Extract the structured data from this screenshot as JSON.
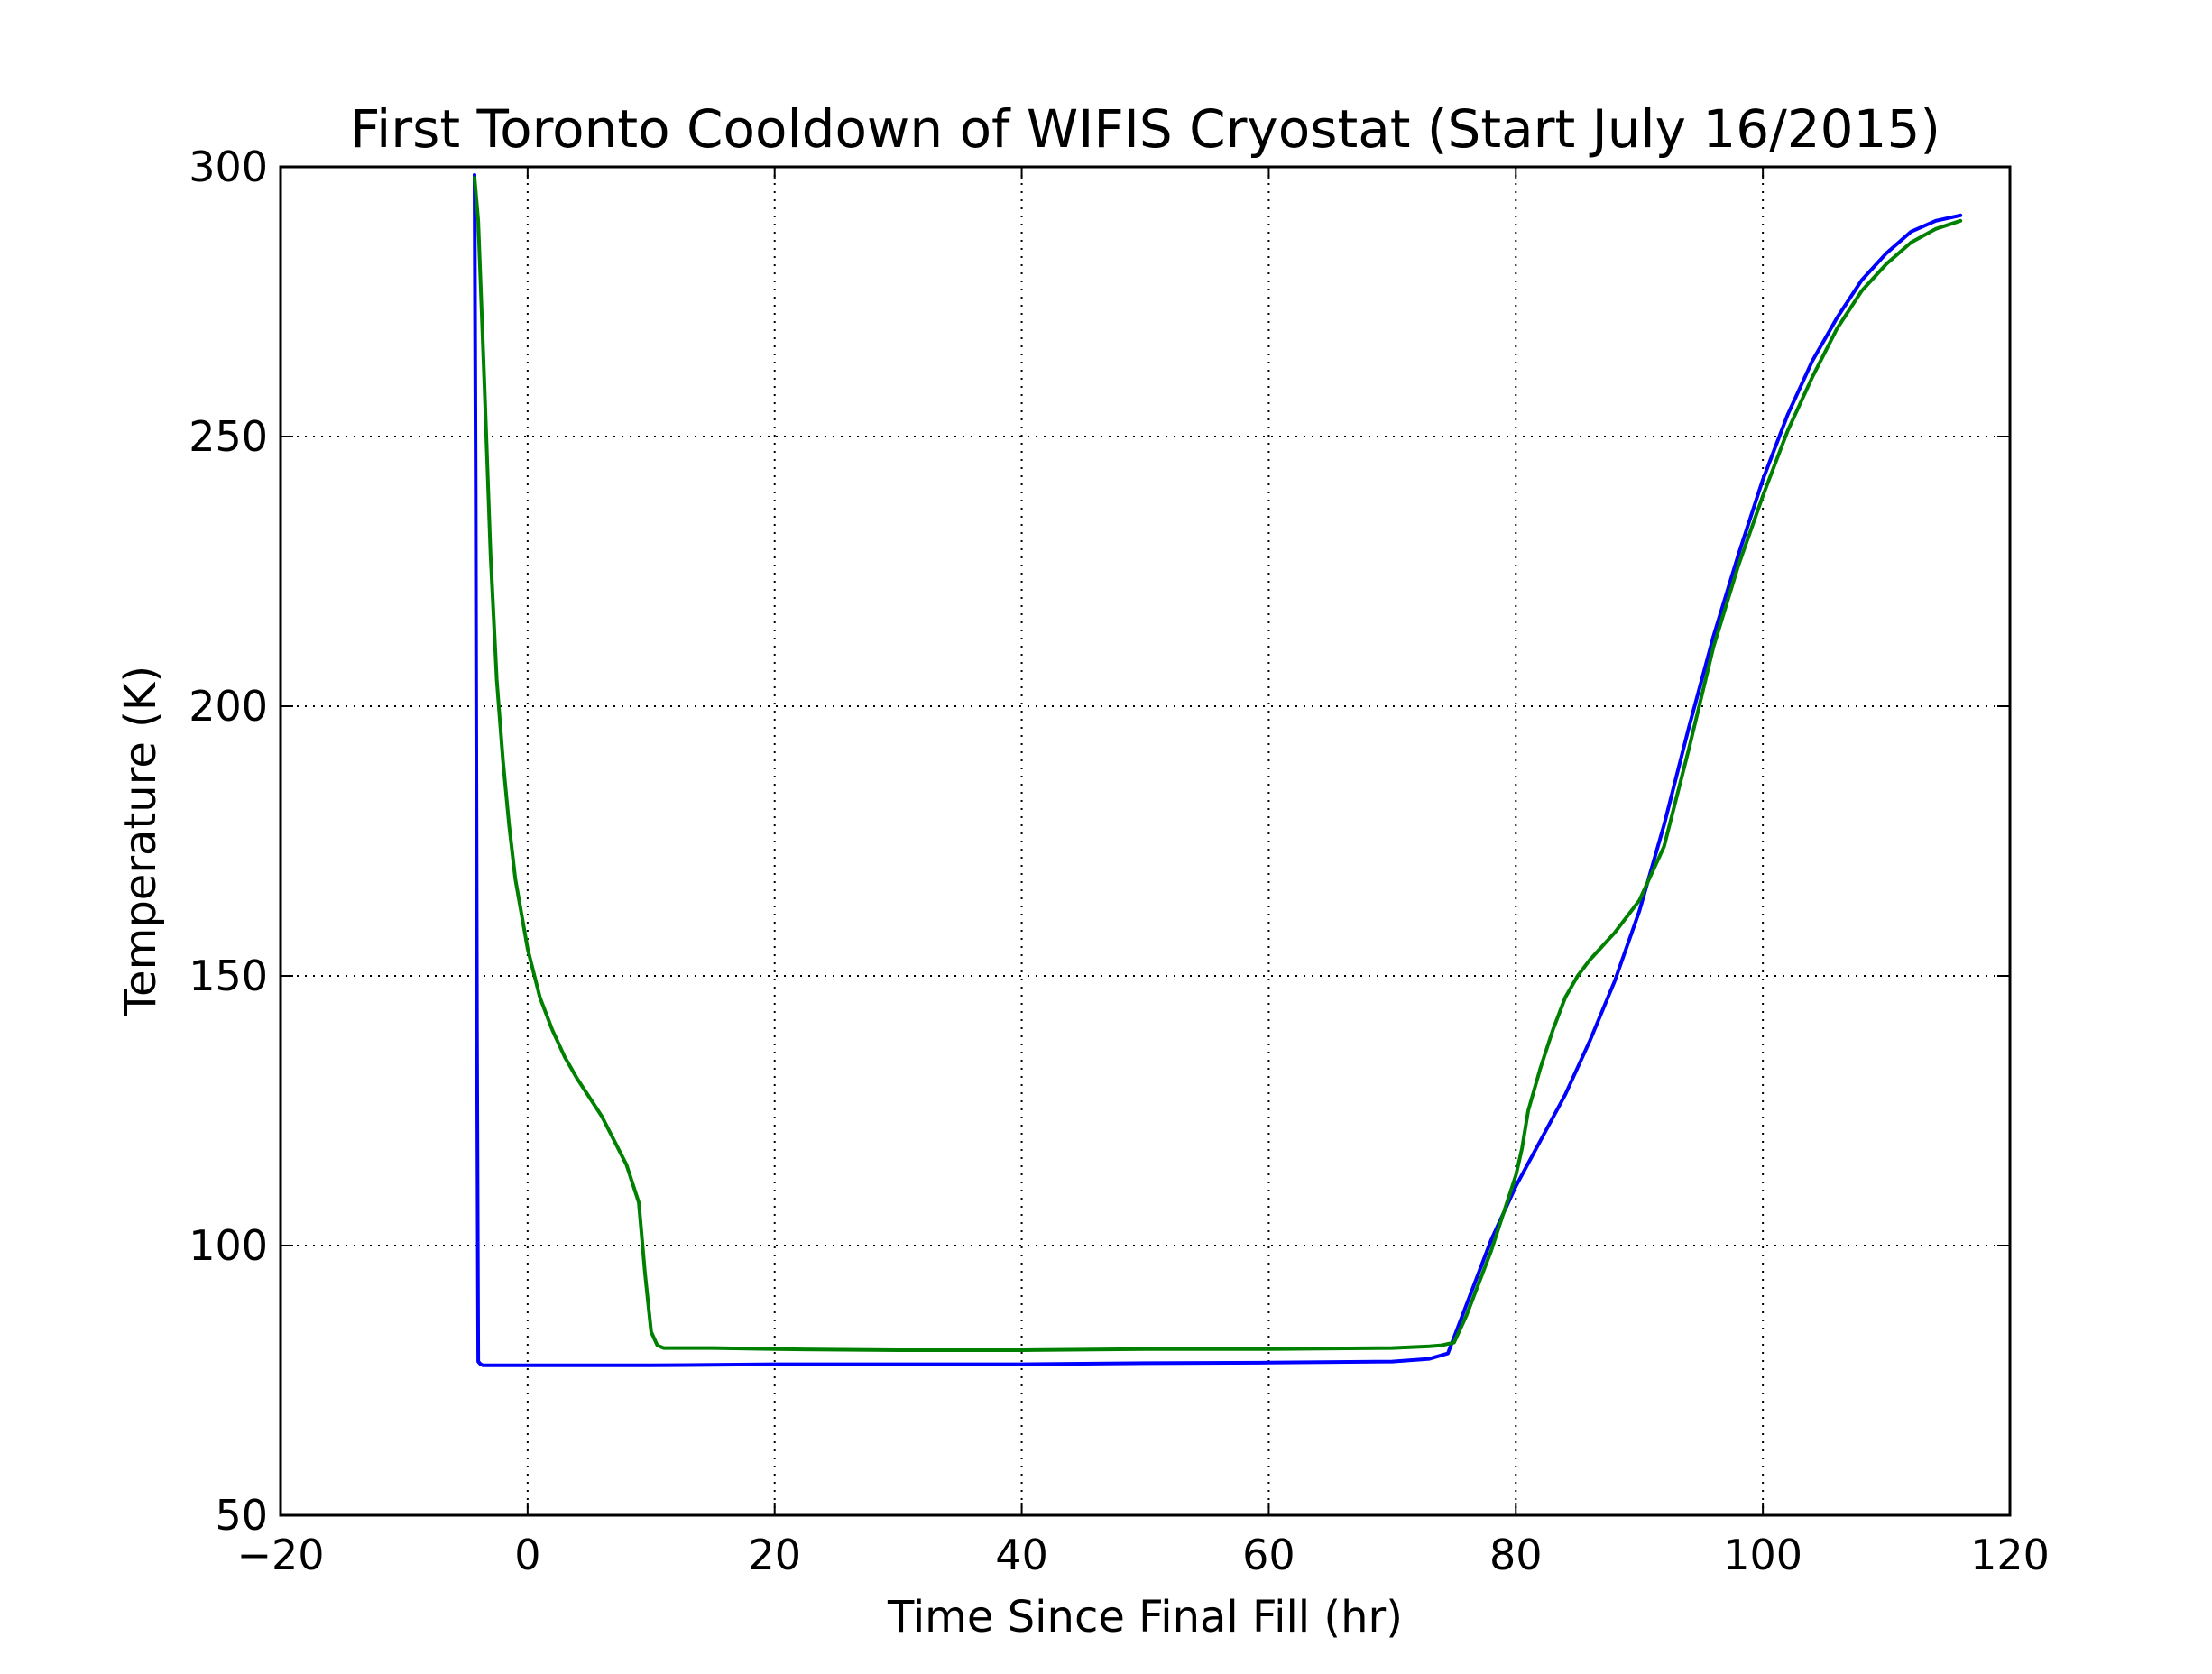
{
  "chart_data": {
    "type": "line",
    "title": "First Toronto Cooldown of WIFIS Cryostat (Start July 16/2015)",
    "xlabel": "Time Since Final Fill (hr)",
    "ylabel": "Temperature (K)",
    "xlim": [
      -20,
      120
    ],
    "ylim": [
      50,
      300
    ],
    "xticks": [
      -20,
      0,
      20,
      40,
      60,
      80,
      100,
      120
    ],
    "yticks": [
      50,
      100,
      150,
      200,
      250,
      300
    ],
    "xtick_labels": [
      "−20",
      "0",
      "20",
      "40",
      "60",
      "80",
      "100",
      "120"
    ],
    "ytick_labels": [
      "50",
      "100",
      "150",
      "200",
      "250",
      "300"
    ],
    "grid": true,
    "grid_style": "dotted",
    "legend": "none",
    "series": [
      {
        "color": "#0000ff",
        "x": [
          -4.3,
          -4.2,
          -4.1,
          -4.0,
          -3.8,
          -3.6,
          -3.0,
          0,
          10,
          20,
          30,
          40,
          50,
          60,
          70,
          73,
          74.5,
          76,
          78,
          80,
          82,
          84,
          86,
          88,
          90,
          92,
          94,
          96,
          98,
          100,
          102,
          104,
          106,
          108,
          110,
          112,
          114,
          116
        ],
        "y": [
          298.5,
          240,
          140,
          78.5,
          78.0,
          77.8,
          77.8,
          77.8,
          77.8,
          78.0,
          78.0,
          78.0,
          78.2,
          78.3,
          78.5,
          79.0,
          80.0,
          89,
          101,
          111,
          119.5,
          128,
          138,
          149,
          162,
          178,
          196,
          213,
          228,
          242,
          254,
          264,
          272,
          279,
          284,
          288,
          290,
          291
        ]
      },
      {
        "color": "#008000",
        "x": [
          -4.3,
          -4.0,
          -3.5,
          -3.0,
          -2.5,
          -2.0,
          -1.5,
          -1.0,
          0,
          1,
          2,
          3,
          4,
          6,
          8,
          9,
          9.5,
          10,
          10.5,
          11,
          15,
          20,
          30,
          40,
          50,
          60,
          70,
          73,
          74,
          75,
          76,
          78,
          79,
          80,
          80.5,
          81,
          82,
          83,
          84,
          85,
          86,
          88,
          90,
          92,
          94,
          96,
          98,
          100,
          102,
          104,
          106,
          108,
          110,
          112,
          114,
          116
        ],
        "y": [
          298,
          290,
          260,
          228,
          205,
          190,
          178,
          168,
          155,
          146,
          140,
          135,
          131,
          124,
          115,
          108,
          95,
          84,
          81.5,
          81.0,
          81.0,
          80.8,
          80.6,
          80.6,
          80.8,
          80.8,
          81.0,
          81.3,
          81.5,
          82.0,
          87,
          99,
          106,
          113,
          118,
          125,
          133,
          140,
          146,
          150,
          153,
          158,
          164,
          174,
          192,
          211,
          226,
          239,
          251,
          261,
          270,
          277,
          282,
          286,
          288.5,
          290
        ]
      }
    ]
  }
}
